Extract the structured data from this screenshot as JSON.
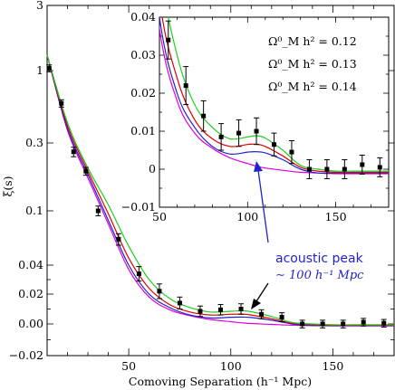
{
  "chart_data": [
    {
      "type": "line",
      "xlabel": "Comoving Separation (h⁻¹ Mpc)",
      "ylabel": "ξ(s)",
      "xlim": [
        10,
        180
      ],
      "y_scale": "asinh-like (compressed log at large values, linear near zero)",
      "x_ticks": [
        "50",
        "100",
        "150"
      ],
      "y_ticks": [
        "−0.02",
        "0.00",
        "0.02",
        "0.04",
        "0.1",
        "0.3",
        "1",
        "3"
      ],
      "series": [
        {
          "name": "Ω⁰_M h² = 0.12",
          "color": "#22cc22",
          "x": [
            10,
            20,
            30,
            40,
            50,
            60,
            70,
            80,
            90,
            100,
            105,
            110,
            120,
            130,
            140,
            150,
            160,
            170,
            180
          ],
          "y": [
            1.3,
            0.42,
            0.2,
            0.11,
            0.055,
            0.03,
            0.017,
            0.011,
            0.008,
            0.0085,
            0.0088,
            0.0082,
            0.005,
            0.001,
            0.0,
            -0.0005,
            -0.0005,
            -0.0005,
            -0.0005
          ]
        },
        {
          "name": "Ω⁰_M h² = 0.13",
          "color": "#dd0000",
          "x": [
            10,
            20,
            30,
            40,
            50,
            60,
            70,
            80,
            90,
            100,
            105,
            110,
            120,
            130,
            140,
            150,
            160,
            170,
            180
          ],
          "y": [
            1.3,
            0.4,
            0.19,
            0.095,
            0.045,
            0.024,
            0.013,
            0.008,
            0.006,
            0.0065,
            0.0066,
            0.006,
            0.0035,
            0.0005,
            -0.0005,
            -0.0008,
            -0.0008,
            -0.0008,
            -0.0008
          ]
        },
        {
          "name": "Ω⁰_M h² = 0.14",
          "color": "#2222cc",
          "x": [
            10,
            20,
            30,
            40,
            50,
            60,
            70,
            80,
            90,
            100,
            105,
            110,
            120,
            130,
            140,
            150,
            160,
            170,
            180
          ],
          "y": [
            1.3,
            0.38,
            0.18,
            0.085,
            0.04,
            0.02,
            0.011,
            0.006,
            0.004,
            0.0045,
            0.0046,
            0.0043,
            0.0025,
            0.0,
            -0.001,
            -0.001,
            -0.001,
            -0.001,
            -0.001
          ]
        },
        {
          "name": "",
          "color": "#dd00dd",
          "x": [
            10,
            20,
            30,
            40,
            50,
            60,
            70,
            80,
            90,
            100,
            105,
            110,
            120,
            130,
            140,
            150,
            160,
            170,
            180
          ],
          "y": [
            1.3,
            0.37,
            0.17,
            0.08,
            0.037,
            0.018,
            0.0095,
            0.0055,
            0.003,
            0.0015,
            0.0008,
            0.0003,
            -0.0003,
            -0.0008,
            -0.001,
            -0.0012,
            -0.0012,
            -0.0012,
            -0.0012
          ]
        },
        {
          "name": "",
          "color": "#000000",
          "type": "scatter_errorbar",
          "x": [
            11,
            17,
            23,
            29,
            35,
            45,
            55,
            65,
            75,
            85,
            95,
            105,
            115,
            125,
            135,
            145,
            155,
            165,
            175
          ],
          "y": [
            1.04,
            0.58,
            0.26,
            0.19,
            0.1,
            0.062,
            0.034,
            0.022,
            0.014,
            0.0085,
            0.0095,
            0.01,
            0.0065,
            0.0045,
            0.0,
            0.0,
            0.0,
            0.0012,
            0.0005
          ],
          "err": [
            0.06,
            0.035,
            0.02,
            0.012,
            0.008,
            0.006,
            0.005,
            0.005,
            0.004,
            0.0035,
            0.0035,
            0.0035,
            0.003,
            0.003,
            0.0025,
            0.0025,
            0.0025,
            0.0025,
            0.0025
          ]
        }
      ]
    },
    {
      "type": "line",
      "inset": true,
      "xlim": [
        50,
        180
      ],
      "ylim": [
        -0.01,
        0.04
      ],
      "x_ticks": [
        "50",
        "100",
        "150"
      ],
      "y_ticks": [
        "−0.01",
        "0",
        "0.01",
        "0.02",
        "0.03",
        "0.04"
      ],
      "legend": "top-right",
      "legend_entries": [
        {
          "text": "Ω⁰_M h² = 0.12",
          "color": "#22cc22"
        },
        {
          "text": "Ω⁰_M h² = 0.13",
          "color": "#dd0000"
        },
        {
          "text": "Ω⁰_M h² = 0.14",
          "color": "#2222cc"
        }
      ]
    }
  ],
  "annotation": {
    "line1": "acoustic peak",
    "line2": "∼ 100 h⁻¹ Mpc",
    "color": "#2222cc"
  }
}
